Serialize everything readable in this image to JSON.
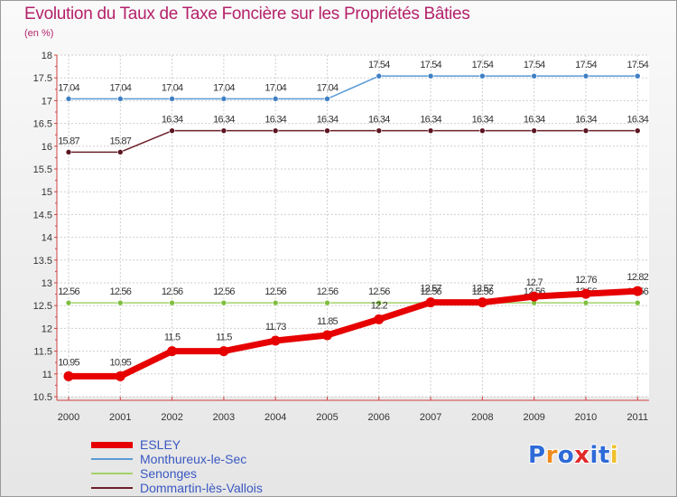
{
  "header": {
    "title": "Evolution du Taux de Taxe Foncière sur les Propriétés Bâties",
    "unit": "(en %)"
  },
  "colors": {
    "esley": "#e60000",
    "monthureux": "#5b9bd5",
    "senonges": "#a3d36b",
    "dommartin": "#6b1f2a",
    "title": "#b4226a",
    "legend_text": "#3a58c2"
  },
  "logo": {
    "letters": [
      "P",
      "r",
      "o",
      "x",
      "i",
      "t",
      "i"
    ],
    "colors": [
      "#2e6bd8",
      "#f08a1c",
      "#2e6bd8",
      "#e02a2a",
      "#2e6bd8",
      "#2e6bd8",
      "#f0c030"
    ]
  },
  "chart_data": {
    "type": "line",
    "title": "Evolution du Taux de Taxe Foncière sur les Propriétés Bâties",
    "ylabel": "(en %)",
    "xlabel": "",
    "categories": [
      "2000",
      "2001",
      "2002",
      "2003",
      "2004",
      "2005",
      "2006",
      "2007",
      "2008",
      "2009",
      "2010",
      "2011"
    ],
    "ylim": [
      10.5,
      18
    ],
    "yticks": [
      10.5,
      11,
      11.5,
      12,
      12.5,
      13,
      13.5,
      14,
      14.5,
      15,
      15.5,
      16,
      16.5,
      17,
      17.5,
      18
    ],
    "ytick_labels": [
      "10.5",
      "11",
      "11.5",
      "12",
      "12.5",
      "13",
      "13.5",
      "14",
      "14.5",
      "15",
      "15.5",
      "16",
      "16.5",
      "17",
      "17.5",
      "18"
    ],
    "grid": true,
    "legend_position": "bottom-left",
    "series": [
      {
        "key": "dommartin",
        "name": "Dommartin-lès-Vallois",
        "values": [
          15.87,
          15.87,
          16.34,
          16.34,
          16.34,
          16.34,
          16.34,
          16.34,
          16.34,
          16.34,
          16.34,
          16.34
        ],
        "labels": [
          "15.87",
          "15.87",
          "16.34",
          "16.34",
          "16.34",
          "16.34",
          "16.34",
          "16.34",
          "16.34",
          "16.34",
          "16.34",
          "16.34"
        ]
      },
      {
        "key": "monthureux",
        "name": "Monthureux-le-Sec",
        "values": [
          17.04,
          17.04,
          17.04,
          17.04,
          17.04,
          17.04,
          17.54,
          17.54,
          17.54,
          17.54,
          17.54,
          17.54
        ],
        "labels": [
          "17.04",
          "17.04",
          "17.04",
          "17.04",
          "17.04",
          "17.04",
          "17.54",
          "17.54",
          "17.54",
          "17.54",
          "17.54",
          "17.54"
        ]
      },
      {
        "key": "senonges",
        "name": "Senonges",
        "values": [
          12.56,
          12.56,
          12.56,
          12.56,
          12.56,
          12.56,
          12.56,
          12.56,
          12.56,
          12.56,
          12.56,
          12.56
        ],
        "labels": [
          "12.56",
          "12.56",
          "12.56",
          "12.56",
          "12.56",
          "12.56",
          "12.56",
          "12.56",
          "12.56",
          "12.56",
          "12.56",
          "12.56"
        ]
      },
      {
        "key": "esley",
        "name": "ESLEY",
        "values": [
          10.95,
          10.95,
          11.5,
          11.5,
          11.73,
          11.85,
          12.2,
          12.57,
          12.57,
          12.7,
          12.76,
          12.82
        ],
        "labels": [
          "10.95",
          "10.95",
          "11.5",
          "11.5",
          "11.73",
          "11.85",
          "12.2",
          "12.57",
          "12.57",
          "12.7",
          "12.76",
          "12.82"
        ]
      }
    ],
    "legend_order": [
      "esley",
      "monthureux",
      "senonges",
      "dommartin"
    ]
  }
}
